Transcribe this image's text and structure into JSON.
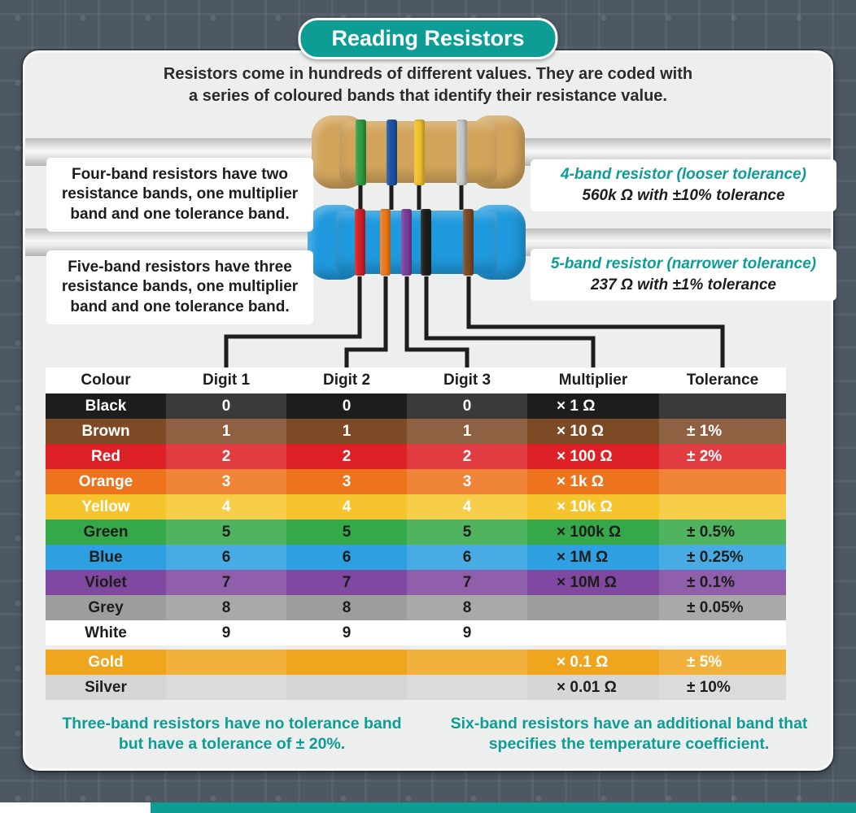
{
  "colors": {
    "accent_teal": "#0d9d95",
    "line": "#1d1d1b",
    "panel_bg": "#edefee",
    "outer_bg": "#4d5862"
  },
  "title": "Reading Resistors",
  "intro": {
    "line1": "Resistors come in hundreds of different values. They are coded with",
    "line2": "a series of coloured bands that identify their resistance value."
  },
  "four_band": {
    "description": "Four-band resistors have two resistance bands, one multiplier band and one tolerance band.",
    "caption_title": "4-band resistor (looser tolerance)",
    "caption_value": "560k Ω with ±10% tolerance",
    "body_color": "#d2a45b",
    "bands": [
      {
        "name": "green",
        "hex": "#2f9e41"
      },
      {
        "name": "blue",
        "hex": "#1d53a5"
      },
      {
        "name": "yellow",
        "hex": "#f2c02c"
      },
      {
        "name": "silver",
        "hex": "#c9c9c9"
      }
    ]
  },
  "five_band": {
    "description": "Five-band resistors have three resistance bands, one multiplier band and one tolerance band.",
    "caption_title": "5-band resistor (narrower tolerance)",
    "caption_value": "237 Ω with ±1% tolerance",
    "body_color": "#1f99dd",
    "bands": [
      {
        "name": "red",
        "hex": "#d11f26"
      },
      {
        "name": "orange",
        "hex": "#ee7a1d"
      },
      {
        "name": "violet",
        "hex": "#7b3f9d"
      },
      {
        "name": "black",
        "hex": "#1d1d1b"
      },
      {
        "name": "brown",
        "hex": "#7c4a25"
      }
    ]
  },
  "table": {
    "headers": [
      "Colour",
      "Digit 1",
      "Digit 2",
      "Digit 3",
      "Multiplier",
      "Tolerance"
    ],
    "rows": [
      {
        "colour": "Black",
        "d1": "0",
        "d2": "0",
        "d3": "0",
        "mult": "× 1 Ω",
        "tol": "",
        "bg": "#1d1d1b",
        "fg": "#ffffff",
        "gap_before": false
      },
      {
        "colour": "Brown",
        "d1": "1",
        "d2": "1",
        "d3": "1",
        "mult": "× 10 Ω",
        "tol": "± 1%",
        "bg": "#7c4a25",
        "fg": "#ffffff",
        "gap_before": false
      },
      {
        "colour": "Red",
        "d1": "2",
        "d2": "2",
        "d3": "2",
        "mult": "× 100 Ω",
        "tol": "± 2%",
        "bg": "#dd1f26",
        "fg": "#ffffff",
        "gap_before": false
      },
      {
        "colour": "Orange",
        "d1": "3",
        "d2": "3",
        "d3": "3",
        "mult": "× 1k Ω",
        "tol": "",
        "bg": "#ee731d",
        "fg": "#ffffff",
        "gap_before": false
      },
      {
        "colour": "Yellow",
        "d1": "4",
        "d2": "4",
        "d3": "4",
        "mult": "× 10k Ω",
        "tol": "",
        "bg": "#f6c52e",
        "fg": "#ffffff",
        "gap_before": false
      },
      {
        "colour": "Green",
        "d1": "5",
        "d2": "5",
        "d3": "5",
        "mult": "× 100k Ω",
        "tol": "± 0.5%",
        "bg": "#35a849",
        "fg": "#1d1d1b",
        "gap_before": false
      },
      {
        "colour": "Blue",
        "d1": "6",
        "d2": "6",
        "d3": "6",
        "mult": "× 1M Ω",
        "tol": "± 0.25%",
        "bg": "#2e9fe0",
        "fg": "#1d1d1b",
        "gap_before": false
      },
      {
        "colour": "Violet",
        "d1": "7",
        "d2": "7",
        "d3": "7",
        "mult": "× 10M Ω",
        "tol": "± 0.1%",
        "bg": "#8048a0",
        "fg": "#1d1d1b",
        "gap_before": false
      },
      {
        "colour": "Grey",
        "d1": "8",
        "d2": "8",
        "d3": "8",
        "mult": "",
        "tol": "± 0.05%",
        "bg": "#9d9d9c",
        "fg": "#1d1d1b",
        "gap_before": false
      },
      {
        "colour": "White",
        "d1": "9",
        "d2": "9",
        "d3": "9",
        "mult": "",
        "tol": "",
        "bg": "#ffffff",
        "fg": "#1d1d1b",
        "gap_before": false
      },
      {
        "colour": "Gold",
        "d1": "",
        "d2": "",
        "d3": "",
        "mult": "× 0.1 Ω",
        "tol": "± 5%",
        "bg": "#f0a51f",
        "fg": "#ffffff",
        "gap_before": true
      },
      {
        "colour": "Silver",
        "d1": "",
        "d2": "",
        "d3": "",
        "mult": "× 0.01 Ω",
        "tol": "± 10%",
        "bg": "#d6d6d6",
        "fg": "#1d1d1b",
        "gap_before": false
      }
    ]
  },
  "footer": {
    "left": "Three-band resistors have no tolerance band but have a tolerance of ± 20%.",
    "right": "Six-band resistors have an additional band that specifies the temperature coefficient."
  }
}
